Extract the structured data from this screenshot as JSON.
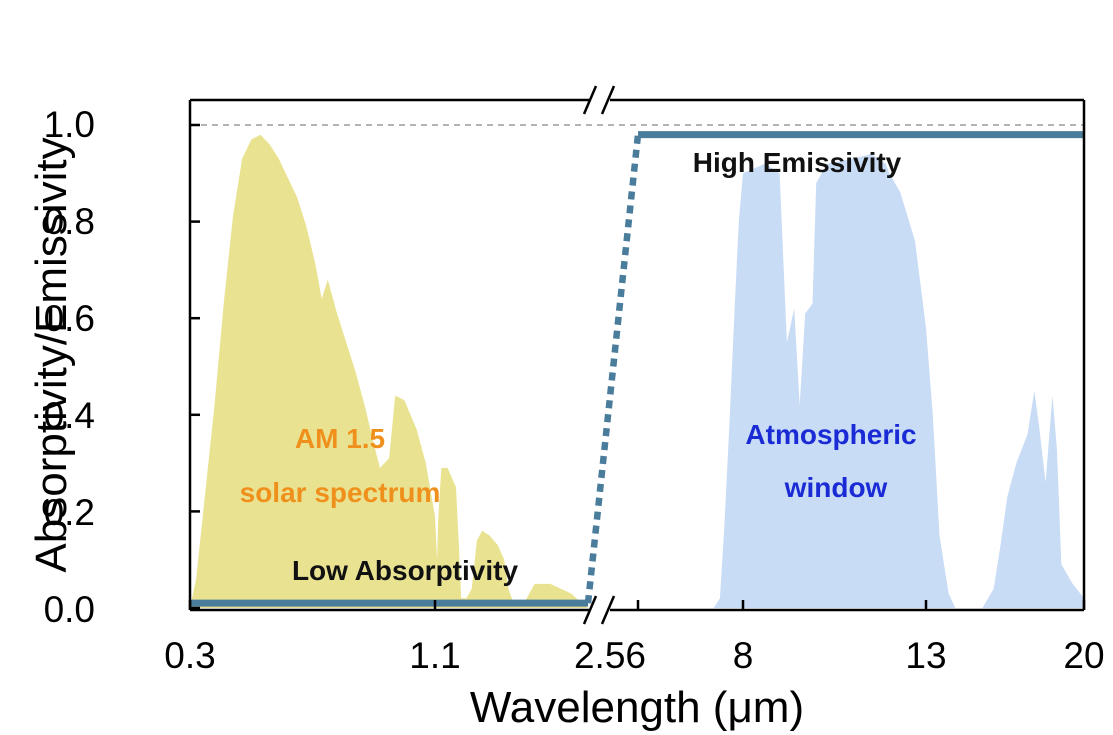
{
  "chart_data": {
    "type": "line",
    "xlabel": "Wavelength (μm)",
    "ylabel": "Absorptivity/Emissivity",
    "x_axis_broken": true,
    "x_segments": [
      {
        "range": [
          0.3,
          2.56
        ],
        "ticks": [
          0.3,
          1.1,
          2.56
        ],
        "tick_labels": [
          "0.3",
          "1.1",
          "2.56"
        ]
      },
      {
        "range": [
          2.56,
          20
        ],
        "ticks": [
          8,
          13,
          20
        ],
        "tick_labels": [
          "8",
          "13",
          "20"
        ]
      }
    ],
    "ylim": [
      0,
      1.0
    ],
    "y_ticks": [
      0.0,
      0.2,
      0.4,
      0.6,
      0.8,
      1.0
    ],
    "y_tick_labels": [
      "0.0",
      "0.2",
      "0.4",
      "0.6",
      "0.8",
      "1.0"
    ],
    "reference_line": {
      "y": 1.0,
      "style": "dashed",
      "color": "#888888"
    },
    "colors": {
      "emissivity_line": "#4a7c9b",
      "solar_fill": "#e9e391",
      "window_fill": "#c9dcf5",
      "solar_label": "#f0901c",
      "window_label": "#1a2bd6",
      "annotation": "#111111"
    },
    "series": [
      {
        "kind": "filled-spectrum",
        "points": [
          [
            0.3,
            0.0
          ],
          [
            0.32,
            0.06
          ],
          [
            0.35,
            0.24
          ],
          [
            0.38,
            0.42
          ],
          [
            0.41,
            0.63
          ],
          [
            0.44,
            0.81
          ],
          [
            0.47,
            0.93
          ],
          [
            0.5,
            0.97
          ],
          [
            0.53,
            0.98
          ],
          [
            0.56,
            0.96
          ],
          [
            0.59,
            0.93
          ],
          [
            0.62,
            0.89
          ],
          [
            0.65,
            0.85
          ],
          [
            0.68,
            0.79
          ],
          [
            0.71,
            0.71
          ],
          [
            0.73,
            0.64
          ],
          [
            0.75,
            0.68
          ],
          [
            0.78,
            0.61
          ],
          [
            0.81,
            0.55
          ],
          [
            0.84,
            0.49
          ],
          [
            0.87,
            0.42
          ],
          [
            0.9,
            0.34
          ],
          [
            0.92,
            0.29
          ],
          [
            0.95,
            0.31
          ],
          [
            0.97,
            0.44
          ],
          [
            1.0,
            0.43
          ],
          [
            1.04,
            0.37
          ],
          [
            1.07,
            0.3
          ],
          [
            1.1,
            0.19
          ],
          [
            1.12,
            0.1
          ],
          [
            1.13,
            0.18
          ],
          [
            1.16,
            0.29
          ],
          [
            1.22,
            0.29
          ],
          [
            1.26,
            0.27
          ],
          [
            1.3,
            0.25
          ],
          [
            1.33,
            0.12
          ],
          [
            1.35,
            0.02
          ],
          [
            1.4,
            0.02
          ],
          [
            1.45,
            0.04
          ],
          [
            1.5,
            0.14
          ],
          [
            1.55,
            0.16
          ],
          [
            1.62,
            0.15
          ],
          [
            1.7,
            0.13
          ],
          [
            1.76,
            0.1
          ],
          [
            1.8,
            0.04
          ],
          [
            1.85,
            0.01
          ],
          [
            1.95,
            0.01
          ],
          [
            2.0,
            0.03
          ],
          [
            2.05,
            0.05
          ],
          [
            2.1,
            0.05
          ],
          [
            2.2,
            0.05
          ],
          [
            2.3,
            0.04
          ],
          [
            2.4,
            0.03
          ],
          [
            2.5,
            0.01
          ],
          [
            2.56,
            0.0
          ]
        ]
      },
      {
        "kind": "filled-spectrum",
        "points": [
          [
            6.6,
            0.0
          ],
          [
            6.9,
            0.02
          ],
          [
            7.1,
            0.16
          ],
          [
            7.35,
            0.38
          ],
          [
            7.6,
            0.62
          ],
          [
            7.8,
            0.8
          ],
          [
            8.0,
            0.9
          ],
          [
            8.3,
            0.91
          ],
          [
            8.6,
            0.92
          ],
          [
            9.0,
            0.9
          ],
          [
            9.2,
            0.55
          ],
          [
            9.4,
            0.62
          ],
          [
            9.55,
            0.42
          ],
          [
            9.7,
            0.61
          ],
          [
            9.9,
            0.63
          ],
          [
            10.0,
            0.88
          ],
          [
            10.3,
            0.92
          ],
          [
            11.0,
            0.93
          ],
          [
            11.5,
            0.94
          ],
          [
            11.9,
            0.92
          ],
          [
            12.0,
            0.9
          ],
          [
            12.3,
            0.86
          ],
          [
            12.7,
            0.76
          ],
          [
            13.0,
            0.58
          ],
          [
            13.3,
            0.4
          ],
          [
            13.6,
            0.15
          ],
          [
            14.0,
            0.03
          ],
          [
            14.3,
            0.0
          ],
          [
            15.5,
            0.0
          ],
          [
            16.0,
            0.04
          ],
          [
            16.3,
            0.13
          ],
          [
            16.6,
            0.23
          ],
          [
            17.0,
            0.3
          ],
          [
            17.5,
            0.36
          ],
          [
            17.8,
            0.45
          ],
          [
            18.0,
            0.38
          ],
          [
            18.3,
            0.26
          ],
          [
            18.6,
            0.44
          ],
          [
            18.8,
            0.33
          ],
          [
            19.0,
            0.09
          ],
          [
            19.5,
            0.05
          ],
          [
            20.0,
            0.02
          ]
        ]
      },
      {
        "kind": "emissivity",
        "points": [
          [
            0.3,
            0.01
          ],
          [
            2.56,
            0.01
          ],
          [
            3.0,
            0.98
          ],
          [
            20,
            0.98
          ]
        ],
        "dotted_segment": [
          1,
          2
        ]
      }
    ],
    "annotations": [
      {
        "text": "AM 1.5",
        "color": "solar_label"
      },
      {
        "text": "solar spectrum",
        "color": "solar_label"
      },
      {
        "text": "Low Absorptivity",
        "color": "annotation"
      },
      {
        "text": "High Emissivity",
        "color": "annotation"
      },
      {
        "text": "Atmospheric",
        "color": "window_label"
      },
      {
        "text": "window",
        "color": "window_label"
      }
    ]
  }
}
